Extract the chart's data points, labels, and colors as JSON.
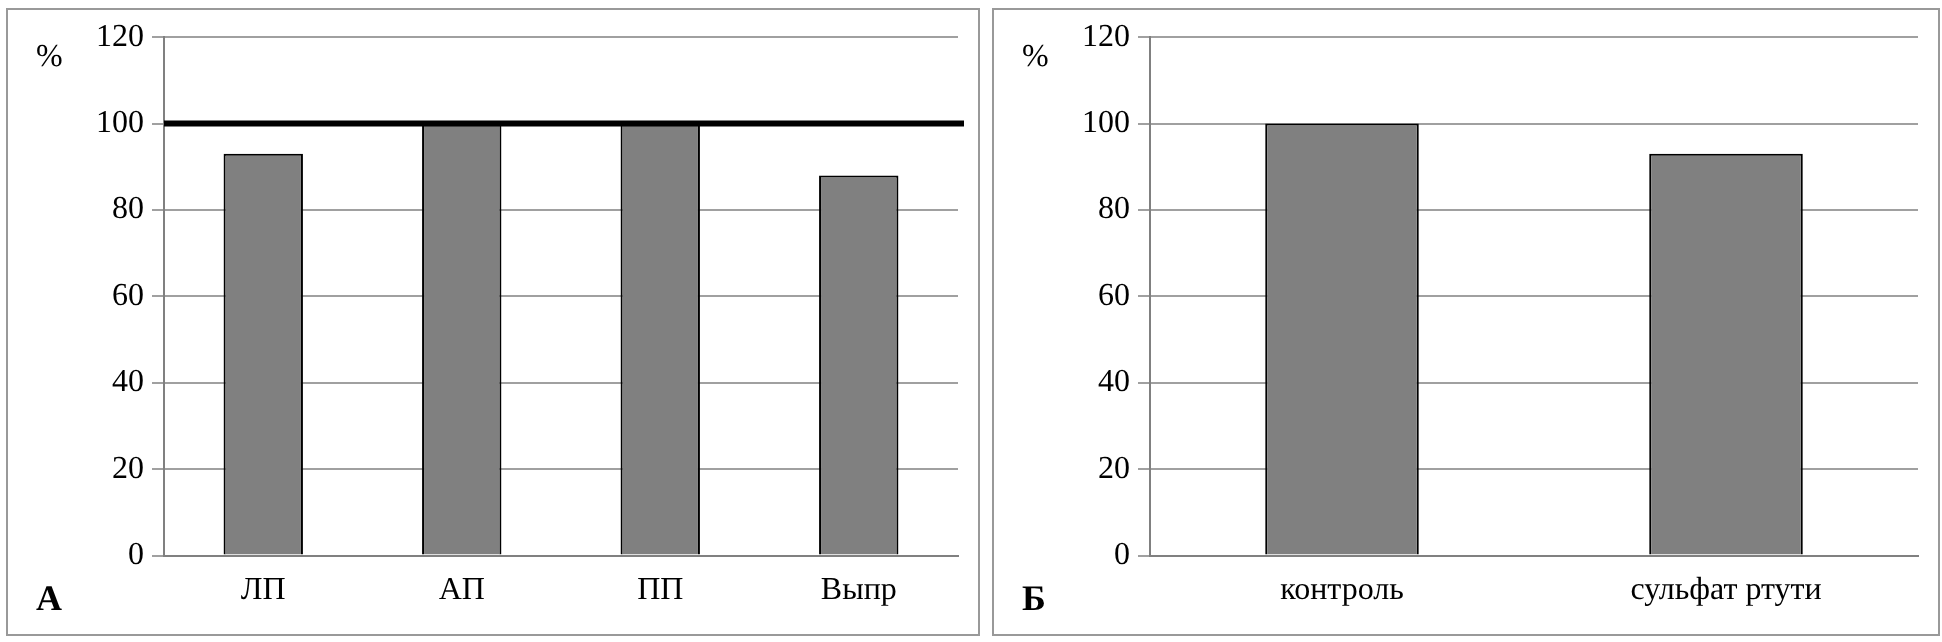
{
  "chart_data": [
    {
      "type": "bar",
      "ylabel": "%",
      "categories": [
        "ЛП",
        "АП",
        "ПП",
        "Выпр"
      ],
      "values": [
        93,
        100,
        100,
        88
      ],
      "color": "#808080",
      "ylim": [
        0,
        120
      ],
      "yticks": [
        0,
        20,
        40,
        60,
        80,
        100,
        120
      ],
      "grid": "y",
      "ref_lines": [
        {
          "axis": "y",
          "value": 100,
          "color": "#000000"
        }
      ],
      "annotations": [
        "А"
      ]
    },
    {
      "type": "bar",
      "ylabel": "%",
      "categories": [
        "контроль",
        "сульфат ртути"
      ],
      "values": [
        100,
        93
      ],
      "color": "#808080",
      "ylim": [
        0,
        120
      ],
      "yticks": [
        0,
        20,
        40,
        60,
        80,
        100,
        120
      ],
      "grid": "y",
      "annotations": [
        "Б"
      ]
    }
  ]
}
